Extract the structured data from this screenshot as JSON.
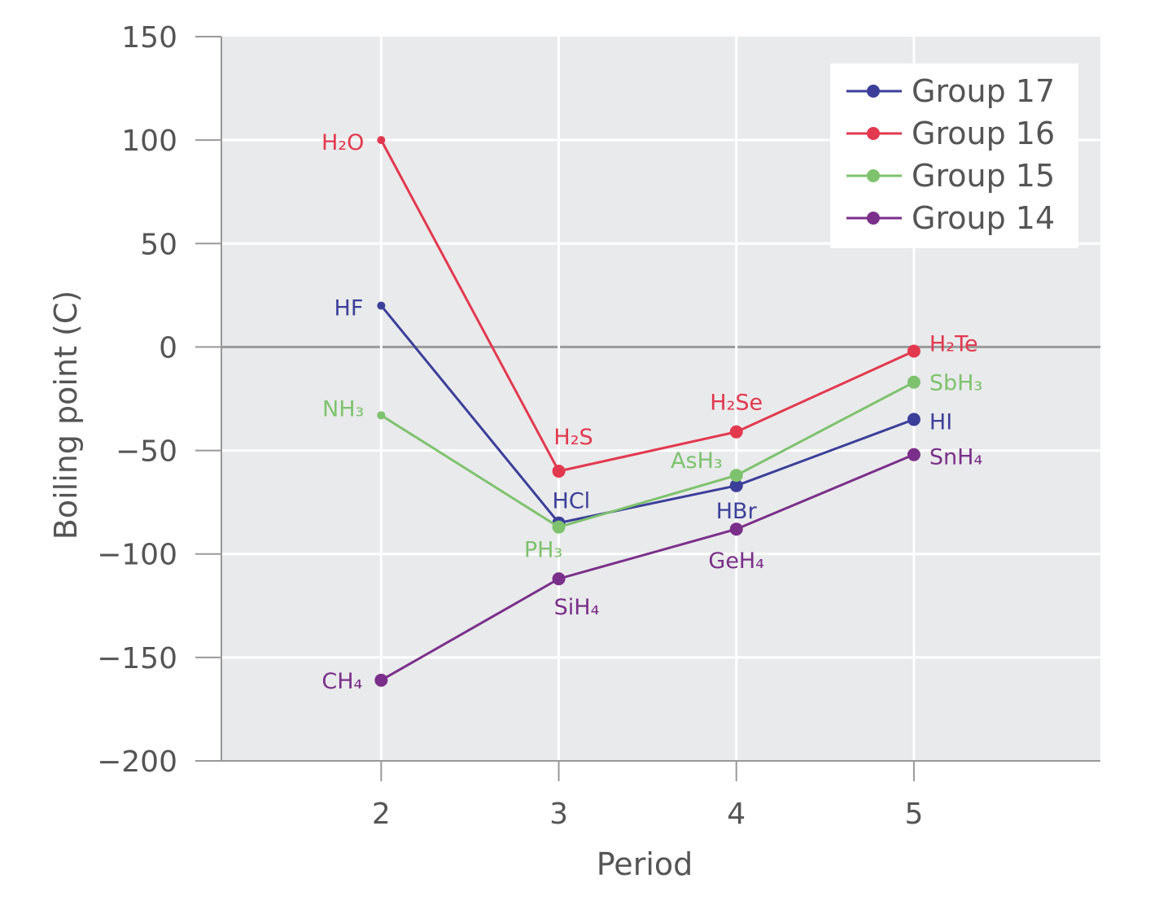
{
  "chart_data": {
    "type": "line",
    "xlabel": "Period",
    "ylabel": "Boiling point (C)",
    "x": [
      2,
      3,
      4,
      5
    ],
    "x_ticks": [
      "2",
      "3",
      "4",
      "5"
    ],
    "xlim": [
      1.1,
      6.05
    ],
    "ylim": [
      -200,
      150
    ],
    "y_ticks": [
      150,
      100,
      50,
      0,
      -50,
      -100,
      -150,
      -200
    ],
    "y_tick_labels": [
      "150",
      "100",
      "50",
      "0",
      "−50",
      "−100",
      "−150",
      "−200"
    ],
    "grid": true,
    "legend_position": "top-right",
    "series": [
      {
        "name": "Group 17",
        "color": "#3b3f9a",
        "values": [
          20,
          -85,
          -67,
          -35
        ],
        "point_labels": [
          "HF",
          "HCl",
          "HBr",
          "HI"
        ]
      },
      {
        "name": "Group 16",
        "color": "#e2394f",
        "values": [
          100,
          -60,
          -41,
          -2
        ],
        "point_labels": [
          "H₂O",
          "H₂S",
          "H₂Se",
          "H₂Te"
        ]
      },
      {
        "name": "Group 15",
        "color": "#7ec26e",
        "values": [
          -33,
          -87,
          -62,
          -17
        ],
        "point_labels": [
          "NH₃",
          "PH₃",
          "AsH₃",
          "SbH₃"
        ]
      },
      {
        "name": "Group 14",
        "color": "#7a2f8a",
        "values": [
          -161,
          -112,
          -88,
          -52
        ],
        "point_labels": [
          "CH₄",
          "SiH₄",
          "GeH₄",
          "SnH₄"
        ]
      }
    ]
  }
}
